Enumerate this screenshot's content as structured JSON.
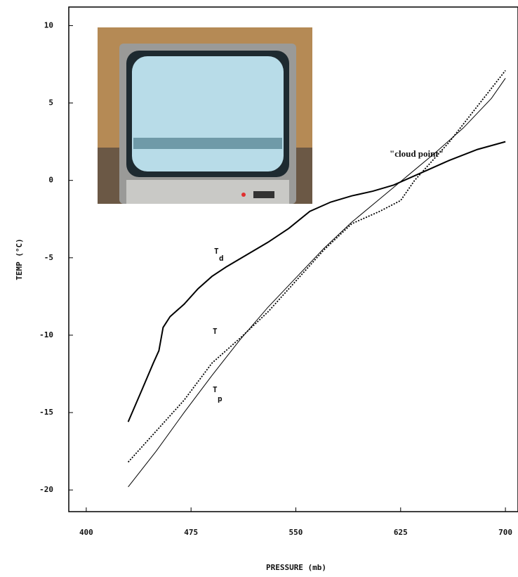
{
  "chart_data": {
    "type": "line",
    "x_label": "PRESSURE (mb)",
    "y_label": "TEMP (°C)",
    "annotations": [
      "\"cloud point\""
    ],
    "xlim": [
      387.5,
      709
    ],
    "ylim": [
      -21.4,
      11.2
    ],
    "xticks": [
      400,
      475,
      550,
      625,
      700
    ],
    "yticks": [
      10,
      5,
      0,
      -5,
      -10,
      -15,
      -20
    ],
    "series": [
      {
        "name": "Td",
        "color": "#000000",
        "style": "solid-thick",
        "x": [
          430,
          440,
          448,
          452,
          455,
          460,
          470,
          480,
          490,
          500,
          515,
          530,
          545,
          560,
          575,
          590,
          605,
          620,
          640,
          660,
          680,
          700
        ],
        "values": [
          -15.6,
          -13.5,
          -11.8,
          -11,
          -9.5,
          -8.8,
          -8,
          -7,
          -6.2,
          -5.6,
          -4.8,
          -4.0,
          -3.1,
          -2.0,
          -1.4,
          -1.0,
          -0.7,
          -0.3,
          0.5,
          1.3,
          2.0,
          2.5
        ]
      },
      {
        "name": "T",
        "color": "#000000",
        "style": "dotted",
        "x": [
          430,
          450,
          470,
          490,
          510,
          530,
          550,
          570,
          590,
          610,
          625,
          635,
          645,
          660,
          680,
          700
        ],
        "values": [
          -18.2,
          -16.2,
          -14.2,
          -11.8,
          -10.2,
          -8.5,
          -6.5,
          -4.5,
          -2.8,
          -2.0,
          -1.3,
          0,
          1.0,
          2.5,
          4.8,
          7.1
        ]
      },
      {
        "name": "Tp",
        "color": "#000000",
        "style": "solid-thin",
        "x": [
          430,
          450,
          470,
          490,
          510,
          530,
          550,
          570,
          590,
          610,
          630,
          650,
          670,
          690,
          700
        ],
        "values": [
          -19.8,
          -17.5,
          -15,
          -12.6,
          -10.3,
          -8.2,
          -6.3,
          -4.4,
          -2.7,
          -1.2,
          0.3,
          1.8,
          3.4,
          5.3,
          6.6
        ]
      }
    ]
  }
}
